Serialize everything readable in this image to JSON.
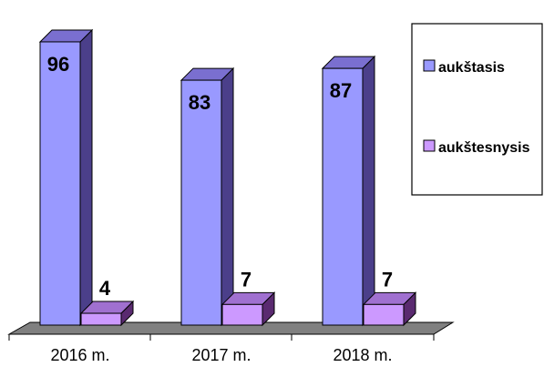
{
  "chart_data": {
    "type": "bar",
    "style": "3d-column",
    "categories": [
      "2016 m.",
      "2017 m.",
      "2018 m."
    ],
    "series": [
      {
        "name": "aukštasis",
        "values": [
          96,
          83,
          87
        ],
        "color": "#9999ff",
        "side_color": "#4b3f8a",
        "top_color": "#7a6fd0"
      },
      {
        "name": "aukštesnysis",
        "values": [
          4,
          7,
          7
        ],
        "color": "#cc99ff",
        "side_color": "#5a2a70",
        "top_color": "#a070d0"
      }
    ],
    "ylim": [
      0,
      100
    ],
    "title": "",
    "xlabel": "",
    "ylabel": "",
    "grid": false,
    "legend": "right"
  }
}
